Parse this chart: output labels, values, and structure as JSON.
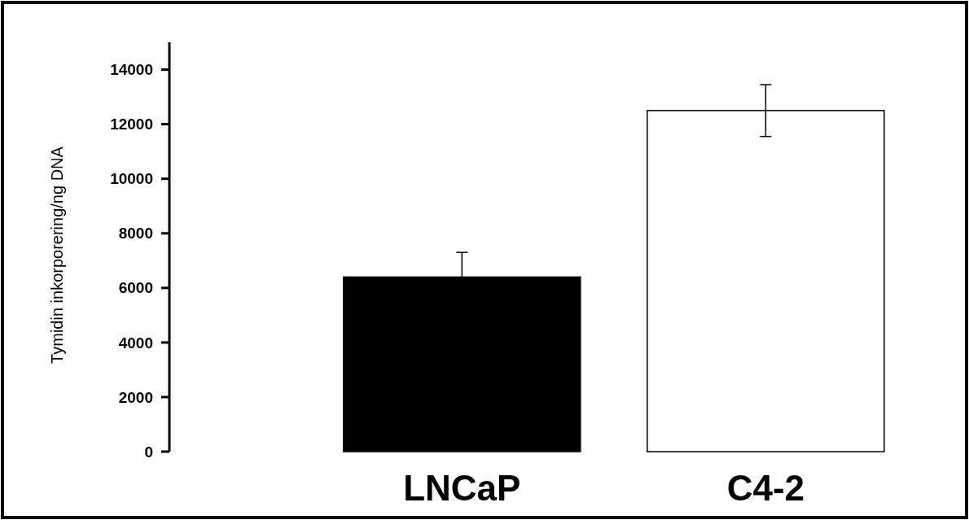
{
  "chart_data": {
    "type": "bar",
    "ylabel": "Tymidin inkorporering/ng DNA",
    "categories": [
      "LNCaP",
      "C4-2"
    ],
    "values": [
      6400,
      12500
    ],
    "colors": [
      "#000000",
      "#ffffff"
    ],
    "errors": [
      900,
      950
    ],
    "ylim": [
      0,
      15000
    ],
    "yticks": [
      0,
      2000,
      4000,
      6000,
      8000,
      10000,
      12000,
      14000
    ],
    "grid": false
  }
}
